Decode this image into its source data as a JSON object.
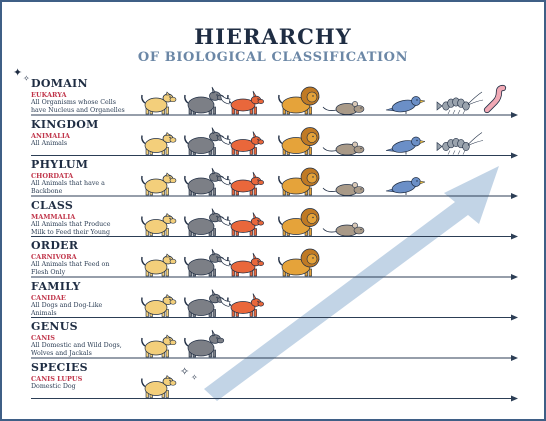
{
  "title": "HIERARCHY",
  "subtitle": "OF BIOLOGICAL CLASSIFICATION",
  "levels": [
    {
      "name": "DOMAIN",
      "taxon": "EUKARYA",
      "desc_lines": [
        "All Organisms whose Cells",
        "have Nucleus and Organelles"
      ],
      "organisms": [
        "dog",
        "wolf",
        "fox",
        "lion",
        "mouse",
        "bird",
        "shrimp",
        "worm"
      ]
    },
    {
      "name": "KINGDOM",
      "taxon": "ANIMALIA",
      "desc_lines": [
        "All Animals"
      ],
      "organisms": [
        "dog",
        "wolf",
        "fox",
        "lion",
        "mouse",
        "bird",
        "shrimp"
      ]
    },
    {
      "name": "PHYLUM",
      "taxon": "CHORDATA",
      "desc_lines": [
        "All Animals that have a",
        "Backbone"
      ],
      "organisms": [
        "dog",
        "wolf",
        "fox",
        "lion",
        "mouse",
        "bird"
      ]
    },
    {
      "name": "CLASS",
      "taxon": "MAMMALIA",
      "desc_lines": [
        "All Animals that Produce",
        "Milk to Feed their Young"
      ],
      "organisms": [
        "dog",
        "wolf",
        "fox",
        "lion",
        "mouse"
      ]
    },
    {
      "name": "ORDER",
      "taxon": "CARNIVORA",
      "desc_lines": [
        "All Animals that Feed on",
        "Flesh Only"
      ],
      "organisms": [
        "dog",
        "wolf",
        "fox",
        "lion"
      ]
    },
    {
      "name": "FAMILY",
      "taxon": "CANIDAE",
      "desc_lines": [
        "All Dogs and Dog-Like",
        "Animals"
      ],
      "organisms": [
        "dog",
        "wolf",
        "fox"
      ]
    },
    {
      "name": "GENUS",
      "taxon": "CANIS",
      "desc_lines": [
        "All Domestic and Wild Dogs,",
        "Wolves and Jackals"
      ],
      "organisms": [
        "dog",
        "wolf"
      ]
    },
    {
      "name": "SPECIES",
      "taxon": "CANIS LUPUS",
      "desc_lines": [
        "Domestic Dog"
      ],
      "organisms": [
        "dog"
      ]
    }
  ],
  "icons": {
    "dog": "dog-icon",
    "wolf": "wolf-icon",
    "fox": "fox-icon",
    "lion": "lion-icon",
    "mouse": "mouse-icon",
    "bird": "bird-icon",
    "shrimp": "shrimp-icon",
    "worm": "worm-icon",
    "sparkle": "sparkle-icon",
    "arrow": "trend-arrow-icon"
  },
  "colors": {
    "frame": "#3f5f86",
    "title": "#1f2d43",
    "subtitle": "#6b87a6",
    "taxon": "#c0354a",
    "dog": "#f3cf7b",
    "wolf": "#7c7f86",
    "fox": "#e9673b",
    "lion": "#e5a33a",
    "mouse": "#a99a88",
    "bird": "#6b8fc7",
    "shrimp": "#9aa3ad",
    "worm": "#f1a9b5",
    "arrow": "#b7cde2",
    "line": "#2c3e55"
  }
}
